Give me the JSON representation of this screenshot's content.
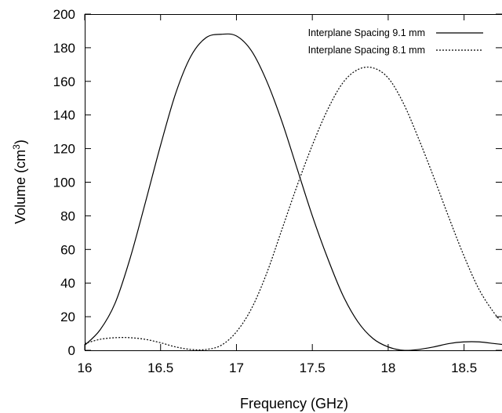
{
  "chart_data": {
    "type": "line",
    "title": "",
    "xlabel": "Frequency (GHz)",
    "ylabel_main": "Volume (cm",
    "ylabel_sup": "3",
    "ylabel_close": ")",
    "xlim": [
      16,
      18.75
    ],
    "ylim": [
      0,
      200
    ],
    "x_ticks": [
      16,
      16.5,
      17,
      17.5,
      18,
      18.5
    ],
    "x_tick_labels": [
      "16",
      "16.5",
      "17",
      "17.5",
      "18",
      "18.5"
    ],
    "y_ticks": [
      0,
      20,
      40,
      60,
      80,
      100,
      120,
      140,
      160,
      180,
      200
    ],
    "y_tick_labels": [
      "0",
      "20",
      "40",
      "60",
      "80",
      "100",
      "120",
      "140",
      "160",
      "180",
      "200"
    ],
    "grid": false,
    "legend_position": "top-right",
    "series": [
      {
        "name": "Interplane Spacing 9.1 mm",
        "dash": "solid",
        "x": [
          16.0,
          16.1,
          16.2,
          16.3,
          16.4,
          16.5,
          16.6,
          16.7,
          16.8,
          16.9,
          17.0,
          17.1,
          17.2,
          17.3,
          17.4,
          17.5,
          17.6,
          17.7,
          17.8,
          17.9,
          18.0,
          18.1,
          18.2,
          18.3,
          18.4,
          18.5,
          18.6,
          18.7,
          18.75
        ],
        "y": [
          3,
          12,
          28,
          55,
          88,
          122,
          153,
          175,
          186,
          188,
          187,
          178,
          160,
          136,
          108,
          80,
          55,
          33,
          17,
          7,
          2,
          0,
          0.5,
          2,
          4,
          5,
          5,
          4,
          3.5
        ]
      },
      {
        "name": "Interplane Spacing 8.1 mm",
        "dash": "dotted",
        "x": [
          16.0,
          16.1,
          16.2,
          16.3,
          16.4,
          16.5,
          16.6,
          16.7,
          16.8,
          16.9,
          17.0,
          17.1,
          17.2,
          17.3,
          17.4,
          17.5,
          17.6,
          17.7,
          17.8,
          17.9,
          18.0,
          18.1,
          18.2,
          18.3,
          18.4,
          18.5,
          18.6,
          18.7,
          18.75
        ],
        "y": [
          4,
          6.5,
          7.5,
          7.5,
          6.5,
          4.5,
          2,
          0.5,
          0.5,
          3,
          11,
          25,
          46,
          72,
          98,
          122,
          143,
          159,
          167,
          168,
          162,
          147,
          126,
          103,
          79,
          56,
          36,
          22,
          17
        ]
      }
    ]
  }
}
